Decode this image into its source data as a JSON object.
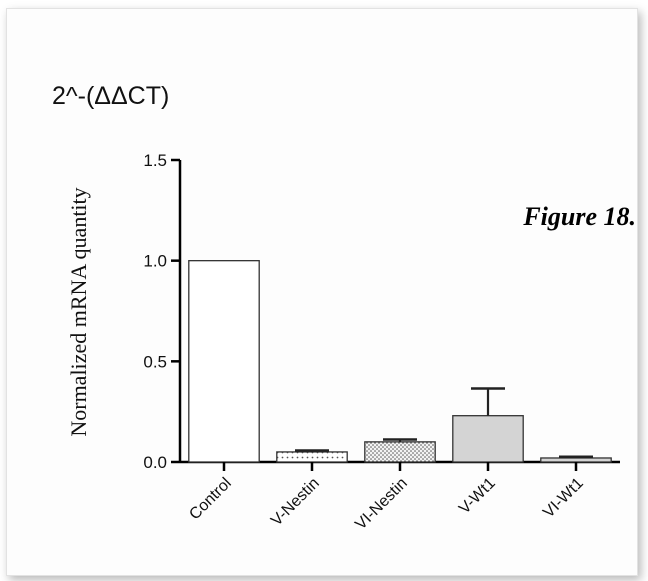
{
  "panel_title": "2^-(ΔΔCT)",
  "figure_label": "Figure 18.",
  "chart_data": {
    "type": "bar",
    "title": "",
    "xlabel": "",
    "ylabel": "Normalized mRNA quantity",
    "categories": [
      "Control",
      "V-Nestin",
      "VI-Nestin",
      "V-Wt1",
      "VI-Wt1"
    ],
    "values": [
      1.0,
      0.05,
      0.1,
      0.23,
      0.02
    ],
    "error": [
      0.0,
      0.007,
      0.012,
      0.135,
      0.006
    ],
    "fills": [
      "white",
      "dots-sparse",
      "dots-dense",
      "#d4d4d4",
      "#d4d4d4"
    ],
    "ylim": [
      0,
      1.5
    ],
    "yticks": [
      0.0,
      0.5,
      1.0,
      1.5
    ],
    "ytick_labels": [
      "0.0",
      "0.5",
      "1.0",
      "1.5"
    ],
    "grid": false,
    "legend": "none"
  }
}
